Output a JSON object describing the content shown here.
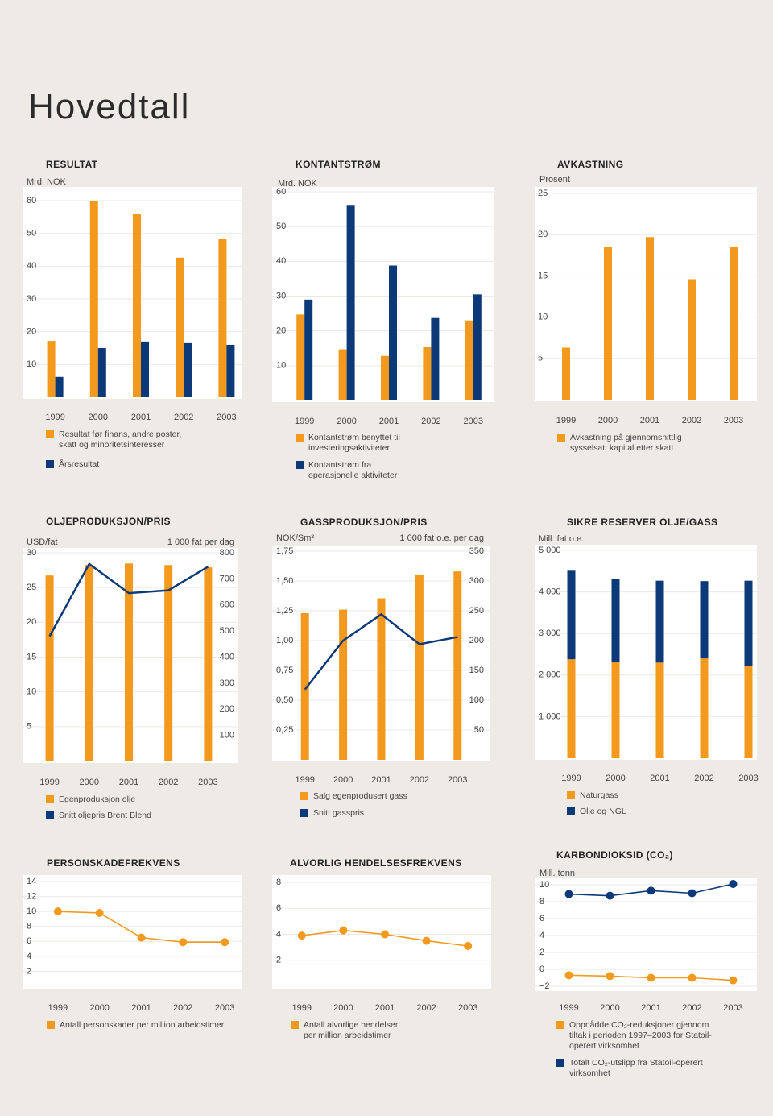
{
  "title": "Hovedtall",
  "chart_data": [
    {
      "type": "bar",
      "title": "RESULTAT",
      "y_label": "Mrd. NOK",
      "categories": [
        "1999",
        "2000",
        "2001",
        "2002",
        "2003"
      ],
      "series": [
        {
          "name": "Resultat før finans, andre poster, skatt og minoritetsinteresser",
          "color": "#f39a1e",
          "values": [
            17.2,
            59.9,
            55.9,
            42.6,
            48.3
          ]
        },
        {
          "name": "Årsresultat",
          "color": "#0c3a78",
          "values": [
            6.2,
            15,
            17,
            16.5,
            16
          ]
        }
      ],
      "ylim": [
        0,
        60
      ],
      "yticks": [
        10,
        20,
        30,
        40,
        50,
        60
      ]
    },
    {
      "type": "bar",
      "title": "KONTANTSTRØM",
      "y_label": "Mrd. NOK",
      "categories": [
        "1999",
        "2000",
        "2001",
        "2002",
        "2003"
      ],
      "series": [
        {
          "name": "Kontantstrøm benyttet til investeringsaktiviteter",
          "color": "#f39a1e",
          "values": [
            24.7,
            14.7,
            12.8,
            15.3,
            23
          ]
        },
        {
          "name": "Kontantstrøm fra operasjonelle aktiviteter",
          "color": "#0c3a78",
          "values": [
            29,
            56,
            38.8,
            23.7,
            30.5
          ]
        }
      ],
      "ylim": [
        0,
        60
      ],
      "yticks": [
        10,
        20,
        30,
        40,
        50,
        60
      ]
    },
    {
      "type": "bar",
      "title": "AVKASTNING",
      "y_label": "Prosent",
      "categories": [
        "1999",
        "2000",
        "2001",
        "2002",
        "2003"
      ],
      "series": [
        {
          "name": "Avkastning på gjennomsnittlig sysselsatt kapital etter skatt",
          "color": "#f39a1e",
          "values": [
            6.3,
            18.5,
            19.7,
            14.6,
            18.5
          ]
        }
      ],
      "ylim": [
        0,
        25
      ],
      "yticks": [
        5,
        10,
        15,
        20,
        25
      ]
    },
    {
      "type": "combo",
      "title": "OLJEPRODUKSJON/PRIS",
      "y_label": "USD/fat",
      "y2_label": "1 000 fat per dag",
      "categories": [
        "1999",
        "2000",
        "2001",
        "2002",
        "2003"
      ],
      "series": [
        {
          "name": "Egenproduksjon olje",
          "type": "bar",
          "axis": "y2",
          "color": "#f39a1e",
          "values": [
            713,
            753,
            759,
            753,
            744
          ]
        },
        {
          "name": "Snitt oljepris Brent Blend",
          "type": "line",
          "color": "#0c3a78",
          "values": [
            18.0,
            28.4,
            24.2,
            24.6,
            28.0
          ]
        }
      ],
      "ylim": [
        0,
        30
      ],
      "yticks": [
        5,
        10,
        15,
        20,
        25,
        30
      ],
      "y2lim": [
        0,
        800
      ],
      "y2ticks": [
        100,
        200,
        300,
        400,
        500,
        600,
        700,
        800
      ]
    },
    {
      "type": "combo",
      "title": "GASSPRODUKSJON/PRIS",
      "y_label": "NOK/Sm³",
      "y2_label": "1 000 fat o.e. per dag",
      "categories": [
        "1999",
        "2000",
        "2001",
        "2002",
        "2003"
      ],
      "series": [
        {
          "name": "Salg egenprodusert gass",
          "type": "bar",
          "axis": "y2",
          "color": "#f39a1e",
          "values": [
            246,
            252,
            271,
            311,
            316
          ]
        },
        {
          "name": "Snitt gasspris",
          "type": "line",
          "color": "#0c3a78",
          "values": [
            0.59,
            1.0,
            1.22,
            0.97,
            1.03
          ]
        }
      ],
      "ylim": [
        0,
        1.75
      ],
      "yticks": [
        {
          "value": 0.25,
          "label": "0,25"
        },
        {
          "value": 0.5,
          "label": "0,50"
        },
        {
          "value": 0.75,
          "label": "0,75"
        },
        {
          "value": 1,
          "label": "1,00"
        },
        {
          "value": 1.25,
          "label": "1,25"
        },
        {
          "value": 1.5,
          "label": "1,50"
        },
        {
          "value": 1.75,
          "label": "1,75"
        }
      ],
      "y2lim": [
        0,
        350
      ],
      "y2ticks": [
        50,
        100,
        150,
        200,
        250,
        300,
        350
      ]
    },
    {
      "type": "stacked-bar",
      "title": "SIKRE RESERVER OLJE/GASS",
      "y_label": "Mill. fat o.e.",
      "categories": [
        "1999",
        "2000",
        "2001",
        "2002",
        "2003"
      ],
      "series": [
        {
          "name": "Naturgass",
          "color": "#f39a1e",
          "values": [
            2380,
            2320,
            2300,
            2400,
            2220
          ]
        },
        {
          "name": "Olje og NGL",
          "color": "#0c3a78",
          "values": [
            2130,
            1990,
            1970,
            1860,
            2050
          ]
        }
      ],
      "ylim": [
        0,
        5000
      ],
      "yticks": [
        {
          "value": 1000,
          "label": "1 000"
        },
        {
          "value": 2000,
          "label": "2 000"
        },
        {
          "value": 3000,
          "label": "3 000"
        },
        {
          "value": 4000,
          "label": "4 000"
        },
        {
          "value": 5000,
          "label": "5 000"
        }
      ]
    },
    {
      "type": "line",
      "title": "PERSONSKADEFREKVENS",
      "categories": [
        "1999",
        "2000",
        "2001",
        "2002",
        "2003"
      ],
      "series": [
        {
          "name": "Antall personskader per million arbeidstimer",
          "color": "#f39a1e",
          "values": [
            10.0,
            9.8,
            6.5,
            5.9,
            5.9
          ]
        }
      ],
      "ylim": [
        0,
        14
      ],
      "yticks": [
        2,
        4,
        6,
        8,
        10,
        12,
        14
      ]
    },
    {
      "type": "line",
      "title": "ALVORLIG HENDELSESFREKVENS",
      "categories": [
        "1999",
        "2000",
        "2001",
        "2002",
        "2003"
      ],
      "series": [
        {
          "name": "Antall alvorlige hendelser per million arbeidstimer",
          "color": "#f39a1e",
          "values": [
            3.9,
            4.3,
            4.0,
            3.5,
            3.1
          ]
        }
      ],
      "ylim": [
        0,
        8
      ],
      "yticks": [
        2,
        4,
        6,
        8
      ]
    },
    {
      "type": "line",
      "title": "KARBONDIOKSID (CO₂)",
      "y_label": "Mill. tonn",
      "categories": [
        "1999",
        "2000",
        "2001",
        "2002",
        "2003"
      ],
      "series": [
        {
          "name": "Oppnådde CO₂-reduksjoner gjennom tiltak i perioden 1997–2003 for Statoil-operert virksomhet",
          "color": "#f39a1e",
          "values": [
            -0.7,
            -0.8,
            -1.0,
            -1.0,
            -1.3
          ]
        },
        {
          "name": "Totalt CO₂-utslipp fra Statoil-operert virksomhet",
          "color": "#0c3a78",
          "values": [
            8.9,
            8.7,
            9.3,
            9.0,
            10.1
          ]
        }
      ],
      "ylim": [
        -2,
        10
      ],
      "yticks": [
        {
          "value": -2,
          "label": "−2"
        },
        0,
        2,
        4,
        6,
        8,
        10
      ]
    }
  ]
}
